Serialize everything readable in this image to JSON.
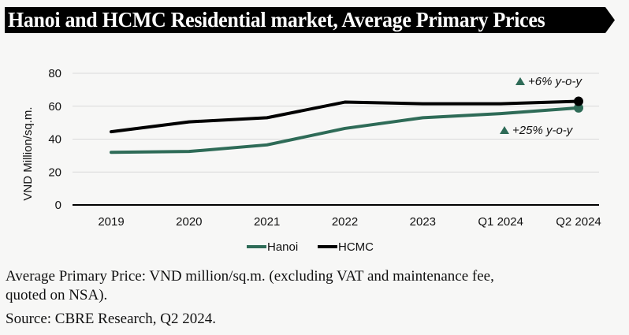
{
  "header": {
    "title": "Hanoi and HCMC Residential market, Average Primary Prices"
  },
  "chart_data": {
    "type": "line",
    "title": "Hanoi and HCMC Residential market, Average Primary Prices",
    "xlabel": "",
    "ylabel": "VND Million/sq.m.",
    "ylim": [
      0,
      80
    ],
    "yticks": [
      0,
      20,
      40,
      60,
      80
    ],
    "grid": true,
    "categories": [
      "2019",
      "2020",
      "2021",
      "2022",
      "2023",
      "Q1 2024",
      "Q2 2024"
    ],
    "series": [
      {
        "name": "Hanoi",
        "color": "#2e6b57",
        "values": [
          32,
          32.5,
          36.5,
          46.5,
          53,
          55.5,
          59
        ]
      },
      {
        "name": "HCMC",
        "color": "#000000",
        "values": [
          44.5,
          50.5,
          53,
          62.5,
          61.5,
          61.5,
          63
        ]
      }
    ],
    "annotations": [
      {
        "series": "HCMC",
        "text": "+6% y-o-y",
        "marker": "up-triangle",
        "marker_color": "#2e6b57"
      },
      {
        "series": "Hanoi",
        "text": "+25% y-o-y",
        "marker": "up-triangle",
        "marker_color": "#2e6b57"
      }
    ],
    "legend": {
      "placement": "bottom-center",
      "entries": [
        "Hanoi",
        "HCMC"
      ]
    }
  },
  "footnotes": {
    "line1": "Average Primary Price: VND million/sq.m. (excluding VAT and maintenance fee,",
    "line2": "quoted on NSA).",
    "source": "Source: CBRE Research, Q2 2024."
  }
}
